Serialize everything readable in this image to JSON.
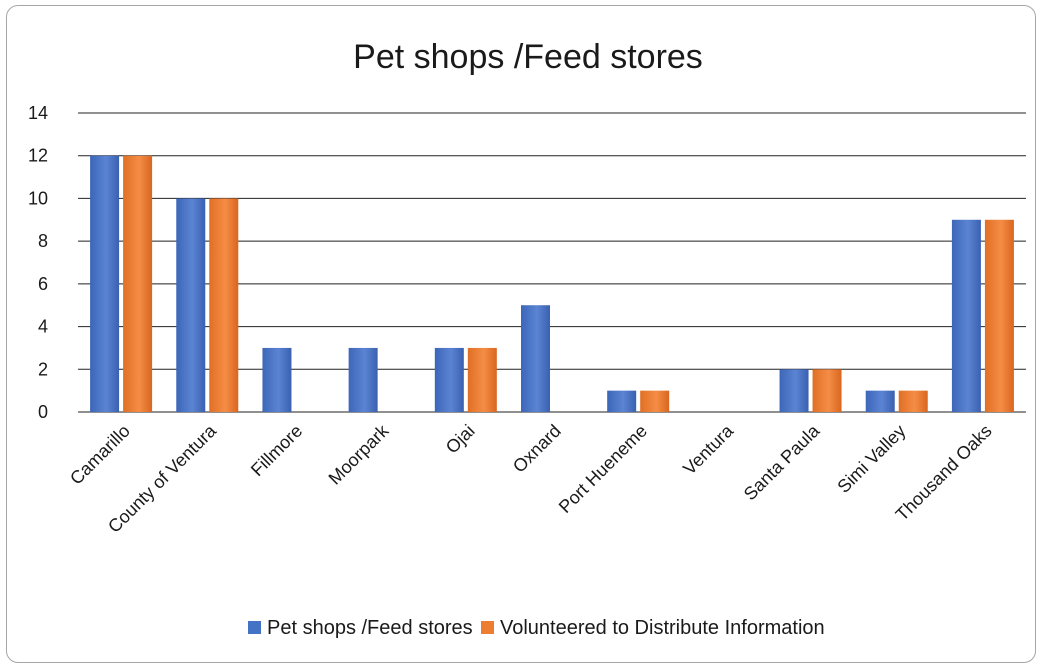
{
  "chart_data": {
    "type": "bar",
    "title": "Pet shops /Feed stores",
    "xlabel": "",
    "ylabel": "",
    "ylim": [
      0,
      14
    ],
    "yticks": [
      0,
      2,
      4,
      6,
      8,
      10,
      12,
      14
    ],
    "grid": true,
    "legend_position": "bottom",
    "categories": [
      "Camarillo",
      "County of Ventura",
      "Fillmore",
      "Moorpark",
      "Ojai",
      "Oxnard",
      "Port Hueneme",
      "Ventura",
      "Santa Paula",
      "Simi Valley",
      "Thousand Oaks"
    ],
    "series": [
      {
        "name": "Pet shops /Feed stores",
        "color": "#4472c4",
        "values": [
          12,
          10,
          3,
          3,
          3,
          5,
          1,
          0,
          2,
          1,
          9
        ]
      },
      {
        "name": "Volunteered to Distribute Information",
        "color": "#ed7d31",
        "values": [
          12,
          10,
          0,
          0,
          3,
          0,
          1,
          0,
          2,
          1,
          9
        ]
      }
    ]
  }
}
